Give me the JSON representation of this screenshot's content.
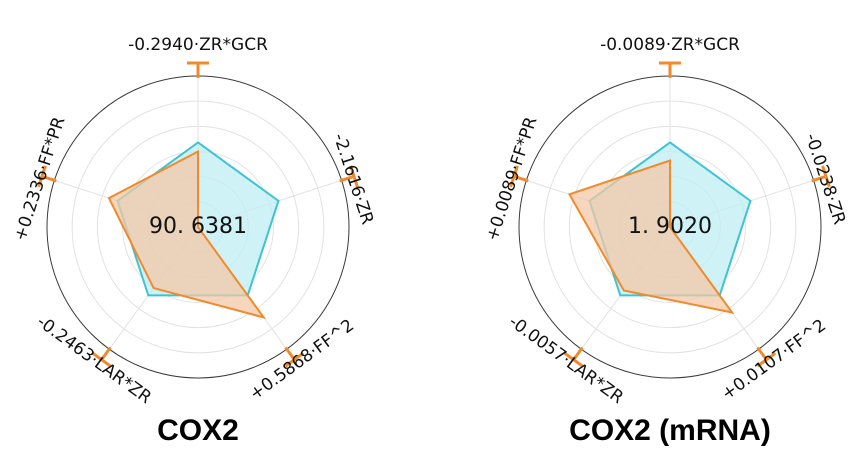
{
  "chart_data": [
    {
      "type": "radar",
      "title": "COX2",
      "center_label": "90. 6381",
      "axes": [
        "-0.2940·ZR*GCR",
        "-2.1616·ZR",
        "+0.5868·FF^2",
        "-0.2463·LAR*ZR",
        "+0.2336·FF*PR"
      ],
      "series": [
        {
          "color": "#3ec3d3",
          "fill": "#bfeef3",
          "values": [
            0.56,
            0.56,
            0.56,
            0.56,
            0.56
          ]
        },
        {
          "color": "#f08a2c",
          "fill": "#f3c8a6",
          "values": [
            0.5,
            0.0,
            0.74,
            0.5,
            0.62
          ]
        }
      ],
      "grid": true,
      "rings": 6
    },
    {
      "type": "radar",
      "title": "COX2 (mRNA)",
      "center_label": "1. 9020",
      "axes": [
        "-0.0089·ZR*GCR",
        "-0.0238·ZR",
        "+0.0107·FF^2",
        "-0.0057·LAR*ZR",
        "+0.0089·FF*PR"
      ],
      "series": [
        {
          "color": "#3ec3d3",
          "fill": "#bfeef3",
          "values": [
            0.56,
            0.56,
            0.56,
            0.56,
            0.56
          ]
        },
        {
          "color": "#f08a2c",
          "fill": "#f3c8a6",
          "values": [
            0.44,
            0.0,
            0.7,
            0.52,
            0.7
          ]
        }
      ],
      "grid": true,
      "rings": 6
    }
  ]
}
